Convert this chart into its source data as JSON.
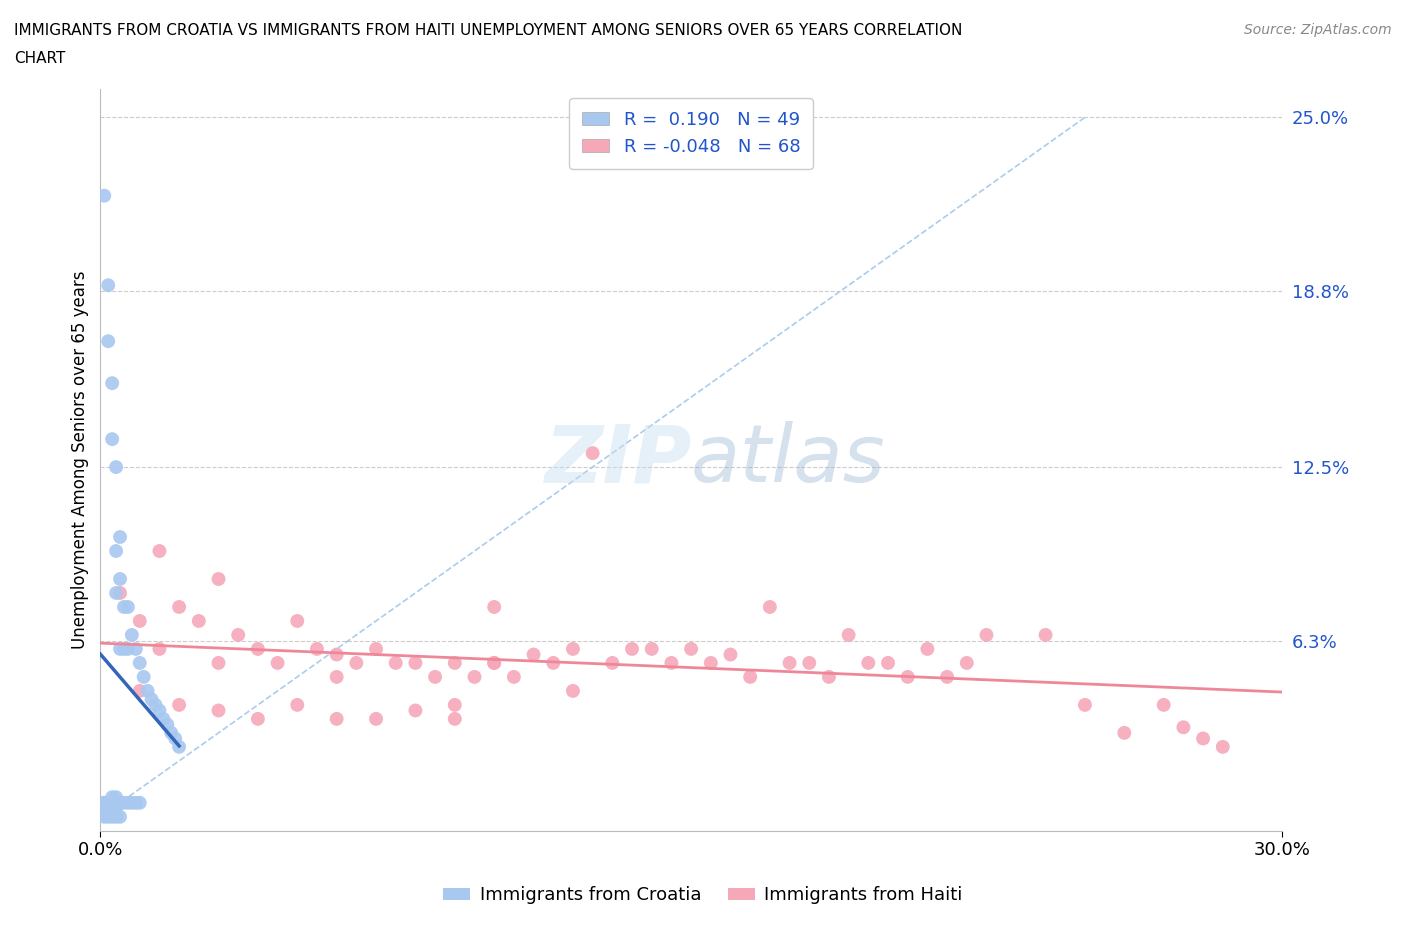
{
  "title_line1": "IMMIGRANTS FROM CROATIA VS IMMIGRANTS FROM HAITI UNEMPLOYMENT AMONG SENIORS OVER 65 YEARS CORRELATION",
  "title_line2": "CHART",
  "source": "Source: ZipAtlas.com",
  "ylabel": "Unemployment Among Seniors over 65 years",
  "xlim": [
    0.0,
    0.3
  ],
  "ylim": [
    -0.005,
    0.26
  ],
  "ytick_labels_right": [
    "25.0%",
    "18.8%",
    "12.5%",
    "6.3%"
  ],
  "ytick_vals_right": [
    0.25,
    0.188,
    0.125,
    0.063
  ],
  "R_croatia": 0.19,
  "N_croatia": 49,
  "R_haiti": -0.048,
  "N_haiti": 68,
  "color_croatia": "#a8c8f0",
  "color_haiti": "#f5a8b8",
  "color_croatia_line": "#3366bb",
  "color_haiti_line": "#ee8899",
  "color_diag": "#aaccee",
  "legend_color_R": "#2255cc",
  "background_color": "#ffffff",
  "grid_color": "#cccccc",
  "croatia_x": [
    0.001,
    0.001,
    0.001,
    0.001,
    0.002,
    0.002,
    0.002,
    0.002,
    0.003,
    0.003,
    0.003,
    0.003,
    0.003,
    0.004,
    0.004,
    0.004,
    0.004,
    0.004,
    0.005,
    0.005,
    0.005,
    0.005,
    0.006,
    0.006,
    0.006,
    0.007,
    0.007,
    0.007,
    0.008,
    0.008,
    0.009,
    0.009,
    0.01,
    0.01,
    0.011,
    0.012,
    0.013,
    0.014,
    0.015,
    0.016,
    0.017,
    0.018,
    0.019,
    0.02,
    0.001,
    0.002,
    0.003,
    0.004,
    0.005
  ],
  "croatia_y": [
    0.222,
    0.005,
    0.005,
    0.003,
    0.19,
    0.17,
    0.005,
    0.002,
    0.155,
    0.135,
    0.007,
    0.005,
    0.003,
    0.125,
    0.095,
    0.08,
    0.007,
    0.003,
    0.1,
    0.085,
    0.06,
    0.005,
    0.075,
    0.06,
    0.005,
    0.075,
    0.06,
    0.005,
    0.065,
    0.005,
    0.06,
    0.005,
    0.055,
    0.005,
    0.05,
    0.045,
    0.042,
    0.04,
    0.038,
    0.035,
    0.033,
    0.03,
    0.028,
    0.025,
    0.0,
    0.0,
    0.0,
    0.0,
    0.0
  ],
  "haiti_x": [
    0.005,
    0.01,
    0.015,
    0.015,
    0.02,
    0.025,
    0.03,
    0.03,
    0.035,
    0.04,
    0.045,
    0.05,
    0.055,
    0.06,
    0.06,
    0.065,
    0.07,
    0.075,
    0.08,
    0.085,
    0.09,
    0.09,
    0.095,
    0.1,
    0.1,
    0.105,
    0.11,
    0.115,
    0.12,
    0.12,
    0.125,
    0.13,
    0.135,
    0.14,
    0.145,
    0.15,
    0.155,
    0.16,
    0.165,
    0.17,
    0.175,
    0.18,
    0.185,
    0.19,
    0.195,
    0.2,
    0.205,
    0.21,
    0.215,
    0.22,
    0.225,
    0.24,
    0.25,
    0.26,
    0.27,
    0.275,
    0.28,
    0.285,
    0.01,
    0.02,
    0.03,
    0.04,
    0.05,
    0.06,
    0.07,
    0.08,
    0.09,
    0.1
  ],
  "haiti_y": [
    0.08,
    0.07,
    0.095,
    0.06,
    0.075,
    0.07,
    0.085,
    0.055,
    0.065,
    0.06,
    0.055,
    0.07,
    0.06,
    0.058,
    0.05,
    0.055,
    0.06,
    0.055,
    0.055,
    0.05,
    0.055,
    0.04,
    0.05,
    0.075,
    0.055,
    0.05,
    0.058,
    0.055,
    0.06,
    0.045,
    0.13,
    0.055,
    0.06,
    0.06,
    0.055,
    0.06,
    0.055,
    0.058,
    0.05,
    0.075,
    0.055,
    0.055,
    0.05,
    0.065,
    0.055,
    0.055,
    0.05,
    0.06,
    0.05,
    0.055,
    0.065,
    0.065,
    0.04,
    0.03,
    0.04,
    0.032,
    0.028,
    0.025,
    0.045,
    0.04,
    0.038,
    0.035,
    0.04,
    0.035,
    0.035,
    0.038,
    0.035,
    0.055
  ]
}
